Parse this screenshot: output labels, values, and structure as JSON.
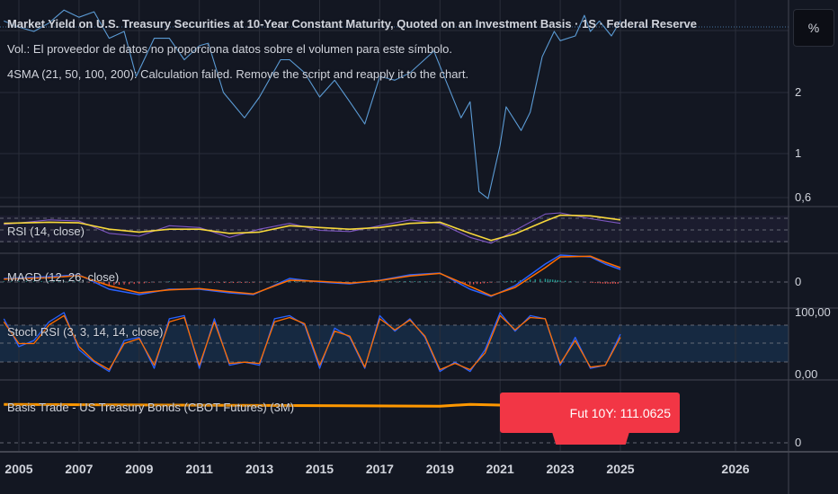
{
  "legend": {
    "title": "Market Yield on U.S. Treasury Securities at 10-Year Constant Maturity, Quoted on an Investment Basis · 1S · Federal Reserve",
    "volume": "Vol.: El proveedor de datos no proporciona datos sobre el volumen para este símbolo.",
    "sma": "4SMA (21, 50, 100, 200): Calculation failed. Remove the script and reapply it to the chart.",
    "rsi": "RSI (14, close)",
    "macd": "MACD (12, 26, close)",
    "stoch": "Stoch RSI (3, 3, 14, 14, close)",
    "basis": "Basis Trade - US Treasury Bonds (CBOT Futures) (3M)"
  },
  "scale_button": "%",
  "futures_label": "Fut 10Y: 111.0625",
  "colors": {
    "price": "#5b9bd5",
    "rsi": "#7e57c2",
    "rsi_ma": "#f7d83b",
    "macd": "#2962ff",
    "signal": "#ff6d00",
    "stoch_k": "#2962ff",
    "stoch_d": "#ff6d00",
    "basis": "#ff9800",
    "label": "#f23645",
    "hist_up": "#26a69a",
    "hist_down": "#ef5350"
  },
  "chart_data": {
    "type": "line",
    "x_ticks": [
      "2005",
      "2007",
      "2009",
      "2011",
      "2013",
      "2015",
      "2017",
      "2019",
      "2021",
      "2023",
      "2025",
      "2026"
    ],
    "price": {
      "y_ticks": [
        "2",
        "1",
        "0,6"
      ],
      "scale": "log",
      "x": [
        2004.5,
        2005,
        2005.5,
        2006,
        2006.5,
        2007,
        2007.5,
        2008,
        2008.5,
        2008.9,
        2009.5,
        2010,
        2010.5,
        2011,
        2011.3,
        2011.8,
        2012.5,
        2013,
        2013.7,
        2014,
        2014.5,
        2015,
        2015.5,
        2016,
        2016.5,
        2017,
        2017.5,
        2018,
        2018.8,
        2019,
        2019.7,
        2020,
        2020.3,
        2020.6,
        2021,
        2021.2,
        2021.7,
        2022,
        2022.4,
        2022.8,
        2023,
        2023.5,
        2023.8,
        2024,
        2024.3,
        2024.7,
        2025
      ],
      "y": [
        4.5,
        4.2,
        4.0,
        4.4,
        5.1,
        4.7,
        5.0,
        3.7,
        4.0,
        2.4,
        3.7,
        3.7,
        2.9,
        3.4,
        3.5,
        2.0,
        1.5,
        1.9,
        2.9,
        2.9,
        2.5,
        1.9,
        2.3,
        1.8,
        1.4,
        2.4,
        2.3,
        2.5,
        3.2,
        2.7,
        1.5,
        1.8,
        0.65,
        0.6,
        1.1,
        1.7,
        1.3,
        1.6,
        3.0,
        4.0,
        3.6,
        3.8,
        4.8,
        4.0,
        4.5,
        3.8,
        4.5
      ]
    },
    "rsi": {
      "bands": [
        70,
        30
      ],
      "x": [
        2004.5,
        2006,
        2007,
        2008,
        2009,
        2010,
        2011,
        2012,
        2013,
        2014,
        2015,
        2016,
        2017,
        2018,
        2019,
        2020,
        2020.7,
        2021.5,
        2022.5,
        2023,
        2024,
        2025
      ],
      "rsi": [
        60,
        68,
        66,
        45,
        40,
        58,
        55,
        38,
        52,
        62,
        50,
        48,
        58,
        68,
        62,
        38,
        28,
        50,
        78,
        80,
        70,
        62
      ],
      "rsi_ma": [
        62,
        64,
        63,
        52,
        47,
        52,
        52,
        45,
        47,
        58,
        55,
        52,
        55,
        62,
        64,
        45,
        33,
        44,
        66,
        76,
        75,
        68
      ]
    },
    "macd": {
      "y_ticks": [
        "0"
      ],
      "x": [
        2004.5,
        2006,
        2007,
        2008,
        2009,
        2010,
        2011,
        2012,
        2012.8,
        2014,
        2015,
        2016,
        2017,
        2018,
        2019,
        2020,
        2020.7,
        2021.5,
        2022.5,
        2023,
        2024,
        2024.5,
        2025
      ],
      "macd": [
        0.1,
        0.15,
        0.2,
        -0.2,
        -0.35,
        -0.2,
        -0.2,
        -0.3,
        -0.35,
        0.1,
        0.0,
        -0.05,
        0.05,
        0.2,
        0.25,
        -0.2,
        -0.4,
        -0.1,
        0.5,
        0.75,
        0.7,
        0.5,
        0.35
      ],
      "signal": [
        0.08,
        0.12,
        0.18,
        -0.1,
        -0.3,
        -0.22,
        -0.18,
        -0.27,
        -0.33,
        0.05,
        0.02,
        -0.03,
        0.04,
        0.17,
        0.24,
        -0.12,
        -0.38,
        -0.15,
        0.4,
        0.7,
        0.72,
        0.55,
        0.4
      ]
    },
    "stoch": {
      "y_ticks": [
        "100,00",
        "0,00"
      ],
      "bands": [
        80,
        20
      ],
      "x": [
        2004.5,
        2005,
        2005.5,
        2006,
        2006.5,
        2007,
        2007.5,
        2008,
        2008.5,
        2009,
        2009.5,
        2010,
        2010.5,
        2011,
        2011.5,
        2012,
        2012.5,
        2013,
        2013.5,
        2014,
        2014.5,
        2015,
        2015.5,
        2016,
        2016.5,
        2017,
        2017.5,
        2018,
        2018.5,
        2019,
        2019.5,
        2020,
        2020.5,
        2021,
        2021.5,
        2022,
        2022.5,
        2023,
        2023.5,
        2024,
        2024.5,
        2025
      ],
      "k": [
        90,
        45,
        55,
        85,
        100,
        40,
        20,
        5,
        55,
        60,
        10,
        90,
        95,
        10,
        90,
        15,
        20,
        15,
        90,
        95,
        80,
        10,
        75,
        60,
        10,
        95,
        70,
        90,
        60,
        5,
        20,
        5,
        40,
        100,
        70,
        95,
        90,
        15,
        60,
        10,
        15,
        65
      ],
      "d": [
        85,
        50,
        50,
        80,
        95,
        45,
        22,
        8,
        50,
        58,
        15,
        85,
        92,
        15,
        85,
        18,
        20,
        18,
        85,
        92,
        82,
        15,
        70,
        62,
        12,
        90,
        72,
        88,
        62,
        8,
        18,
        8,
        35,
        95,
        72,
        92,
        90,
        18,
        55,
        12,
        15,
        60
      ]
    },
    "basis": {
      "y_ticks": [
        "0"
      ],
      "x": [
        2004.5,
        2019,
        2020,
        2021,
        2021.5
      ],
      "y": [
        111.1,
        111.0,
        111.1,
        111.06,
        111.0625
      ]
    }
  }
}
